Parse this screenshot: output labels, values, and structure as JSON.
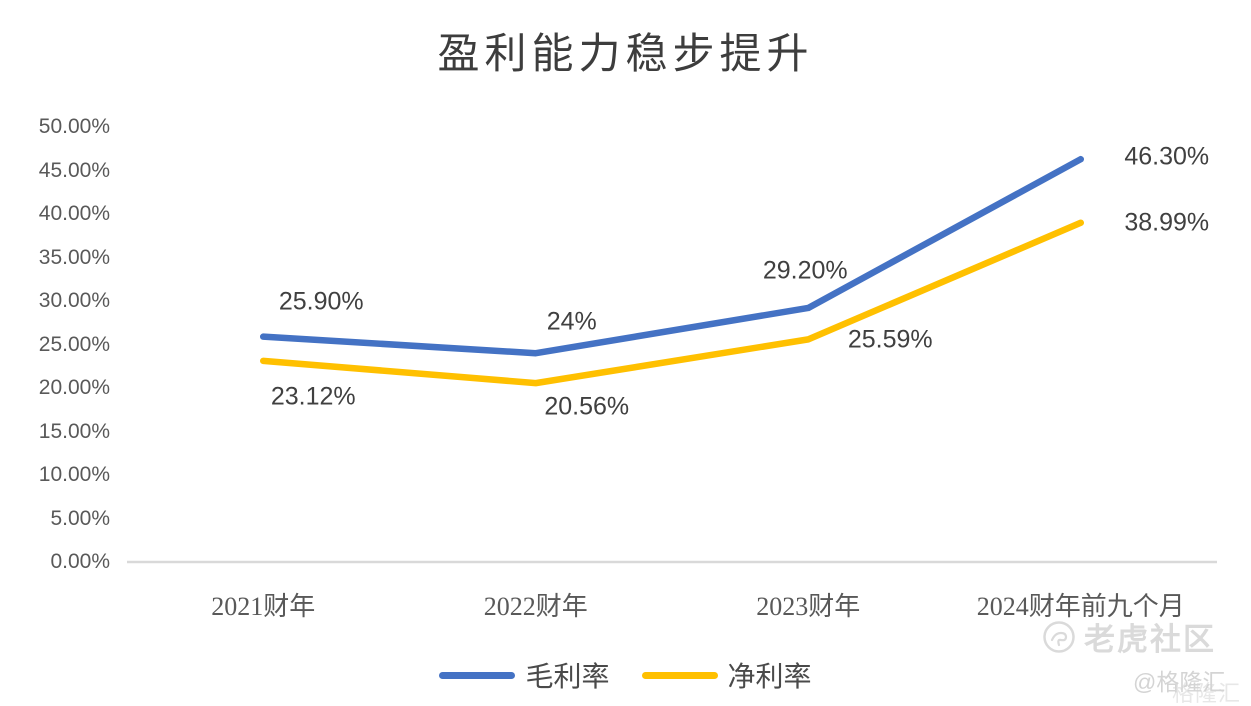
{
  "chart_data": {
    "type": "line",
    "title": "盈利能力稳步提升",
    "categories": [
      "2021财年",
      "2022财年",
      "2023财年",
      "2024财年前九个月"
    ],
    "series": [
      {
        "name": "毛利率",
        "color": "#4472C4",
        "values": [
          25.9,
          24,
          29.2,
          46.3
        ],
        "labels": [
          "25.90%",
          "24%",
          "29.20%",
          "46.30%"
        ]
      },
      {
        "name": "净利率",
        "color": "#FFC000",
        "values": [
          23.12,
          20.56,
          25.59,
          38.99
        ],
        "labels": [
          "23.12%",
          "20.56%",
          "25.59%",
          "38.99%"
        ]
      }
    ],
    "y_axis": {
      "min": 0,
      "max": 50,
      "step": 5,
      "tick_labels": [
        "0.00%",
        "5.00%",
        "10.00%",
        "15.00%",
        "20.00%",
        "25.00%",
        "30.00%",
        "35.00%",
        "40.00%",
        "45.00%",
        "50.00%"
      ]
    },
    "axis_line_color": "#D9D9D9",
    "legend_position": "bottom",
    "grid": false
  },
  "watermark": {
    "community": "老虎社区",
    "attribution": "@格隆汇",
    "ghost": "格隆汇"
  }
}
